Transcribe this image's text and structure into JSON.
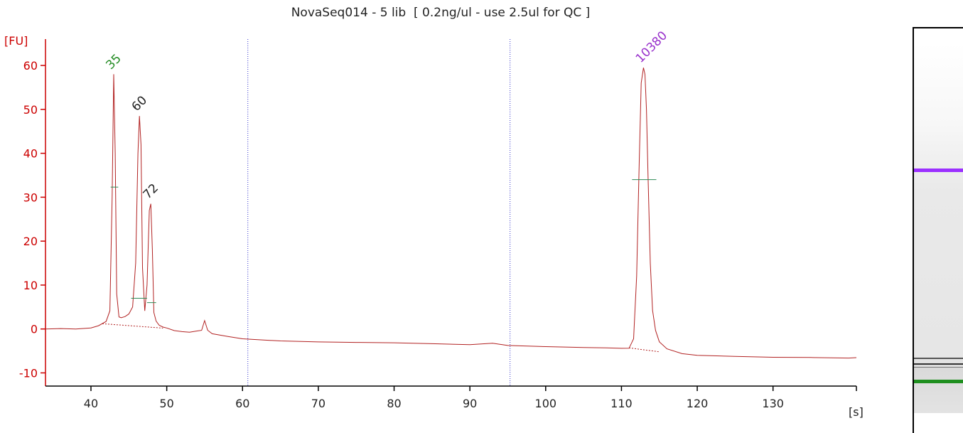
{
  "chart_data": {
    "type": "line",
    "title": "NovaSeq014 - 5 lib  [ 0.2ng/ul - use 2.5ul for QC ]",
    "ylabel": "[FU]",
    "xlabel": "[s]",
    "xlim": [
      34,
      141
    ],
    "ylim": [
      -13,
      66
    ],
    "xticks": [
      40,
      50,
      60,
      70,
      80,
      90,
      100,
      110,
      120,
      130
    ],
    "yticks": [
      -10,
      0,
      10,
      20,
      30,
      40,
      50,
      60
    ],
    "grid": false,
    "series": [
      {
        "color": "#b22222",
        "x": [
          34,
          36,
          38,
          40,
          41,
          42,
          42.5,
          42.8,
          43.0,
          43.2,
          43.4,
          43.7,
          44,
          44.5,
          45,
          45.5,
          45.9,
          46.2,
          46.4,
          46.6,
          46.8,
          47.1,
          47.4,
          47.7,
          47.9,
          48.1,
          48.3,
          48.6,
          49,
          49.5,
          50,
          51,
          52,
          53,
          54,
          54.6,
          55,
          55.4,
          56,
          58,
          60,
          62,
          65,
          70,
          75,
          80,
          85,
          90,
          93,
          95,
          100,
          105,
          108,
          110,
          111,
          111.6,
          112.0,
          112.3,
          112.6,
          112.9,
          113.1,
          113.3,
          113.5,
          113.8,
          114.1,
          114.5,
          115,
          116,
          118,
          120,
          125,
          130,
          135,
          140,
          141
        ],
        "y": [
          0,
          0,
          -0.2,
          0,
          0.5,
          1.5,
          4,
          30,
          58,
          40,
          8,
          3,
          2.8,
          3,
          3.5,
          5,
          15,
          40,
          48.5,
          42,
          14,
          4,
          10,
          27,
          28.5,
          18,
          4,
          2,
          1,
          0.5,
          0.2,
          -0.5,
          -0.8,
          -1,
          -0.7,
          -0.5,
          1.8,
          -0.3,
          -1,
          -1.5,
          -2,
          -2.2,
          -2.5,
          -2.8,
          -3.0,
          -3.2,
          -3.5,
          -3.8,
          -3.5,
          -4,
          -4.2,
          -4.3,
          -4.3,
          -4.3,
          -4.2,
          -2,
          12,
          35,
          56,
          59.5,
          58,
          50,
          35,
          15,
          4,
          -0.5,
          -3,
          -4.5,
          -5.5,
          -5.8,
          -6,
          -6.2,
          -6.3,
          -6.5,
          -6.5
        ]
      }
    ],
    "peaks": [
      {
        "label": "35",
        "x": 43.0,
        "y": 58,
        "color": "#228b22"
      },
      {
        "label": "60",
        "x": 46.4,
        "y": 48.5,
        "color": "#222222"
      },
      {
        "label": "72",
        "x": 47.9,
        "y": 28.5,
        "color": "#222222"
      },
      {
        "label": "10380",
        "x": 112.9,
        "y": 59.5,
        "color": "#9932cc"
      }
    ],
    "half_height_marks": [
      {
        "x1": 42.6,
        "x2": 43.6,
        "y": 32.3
      },
      {
        "x1": 45.3,
        "x2": 47.4,
        "y": 7
      },
      {
        "x1": 47.4,
        "x2": 48.6,
        "y": 6
      },
      {
        "x1": 111.4,
        "x2": 114.6,
        "y": 34
      }
    ],
    "baselines": [
      {
        "x1": 41.5,
        "x2": 49.5,
        "y1": 1.2,
        "y2": 0.2
      },
      {
        "x1": 111.0,
        "x2": 115.0,
        "y1": -4.3,
        "y2": -5.2
      }
    ],
    "markers_x": [
      60.7,
      95.3
    ],
    "colors": {
      "axis": "#cc0000",
      "trace": "#b22222",
      "marker": "#3333cc",
      "half": "#2e8b57"
    }
  },
  "gel": {
    "bands": [
      {
        "pos": 0.34,
        "color": "#9b30ff",
        "thickness": 5
      },
      {
        "pos": 0.85,
        "color": "#555555",
        "thickness": 2
      },
      {
        "pos": 0.865,
        "color": "#333333",
        "thickness": 2
      },
      {
        "pos": 0.875,
        "color": "#777777",
        "thickness": 1
      },
      {
        "pos": 0.91,
        "color": "#1f8f1f",
        "thickness": 5
      }
    ]
  }
}
